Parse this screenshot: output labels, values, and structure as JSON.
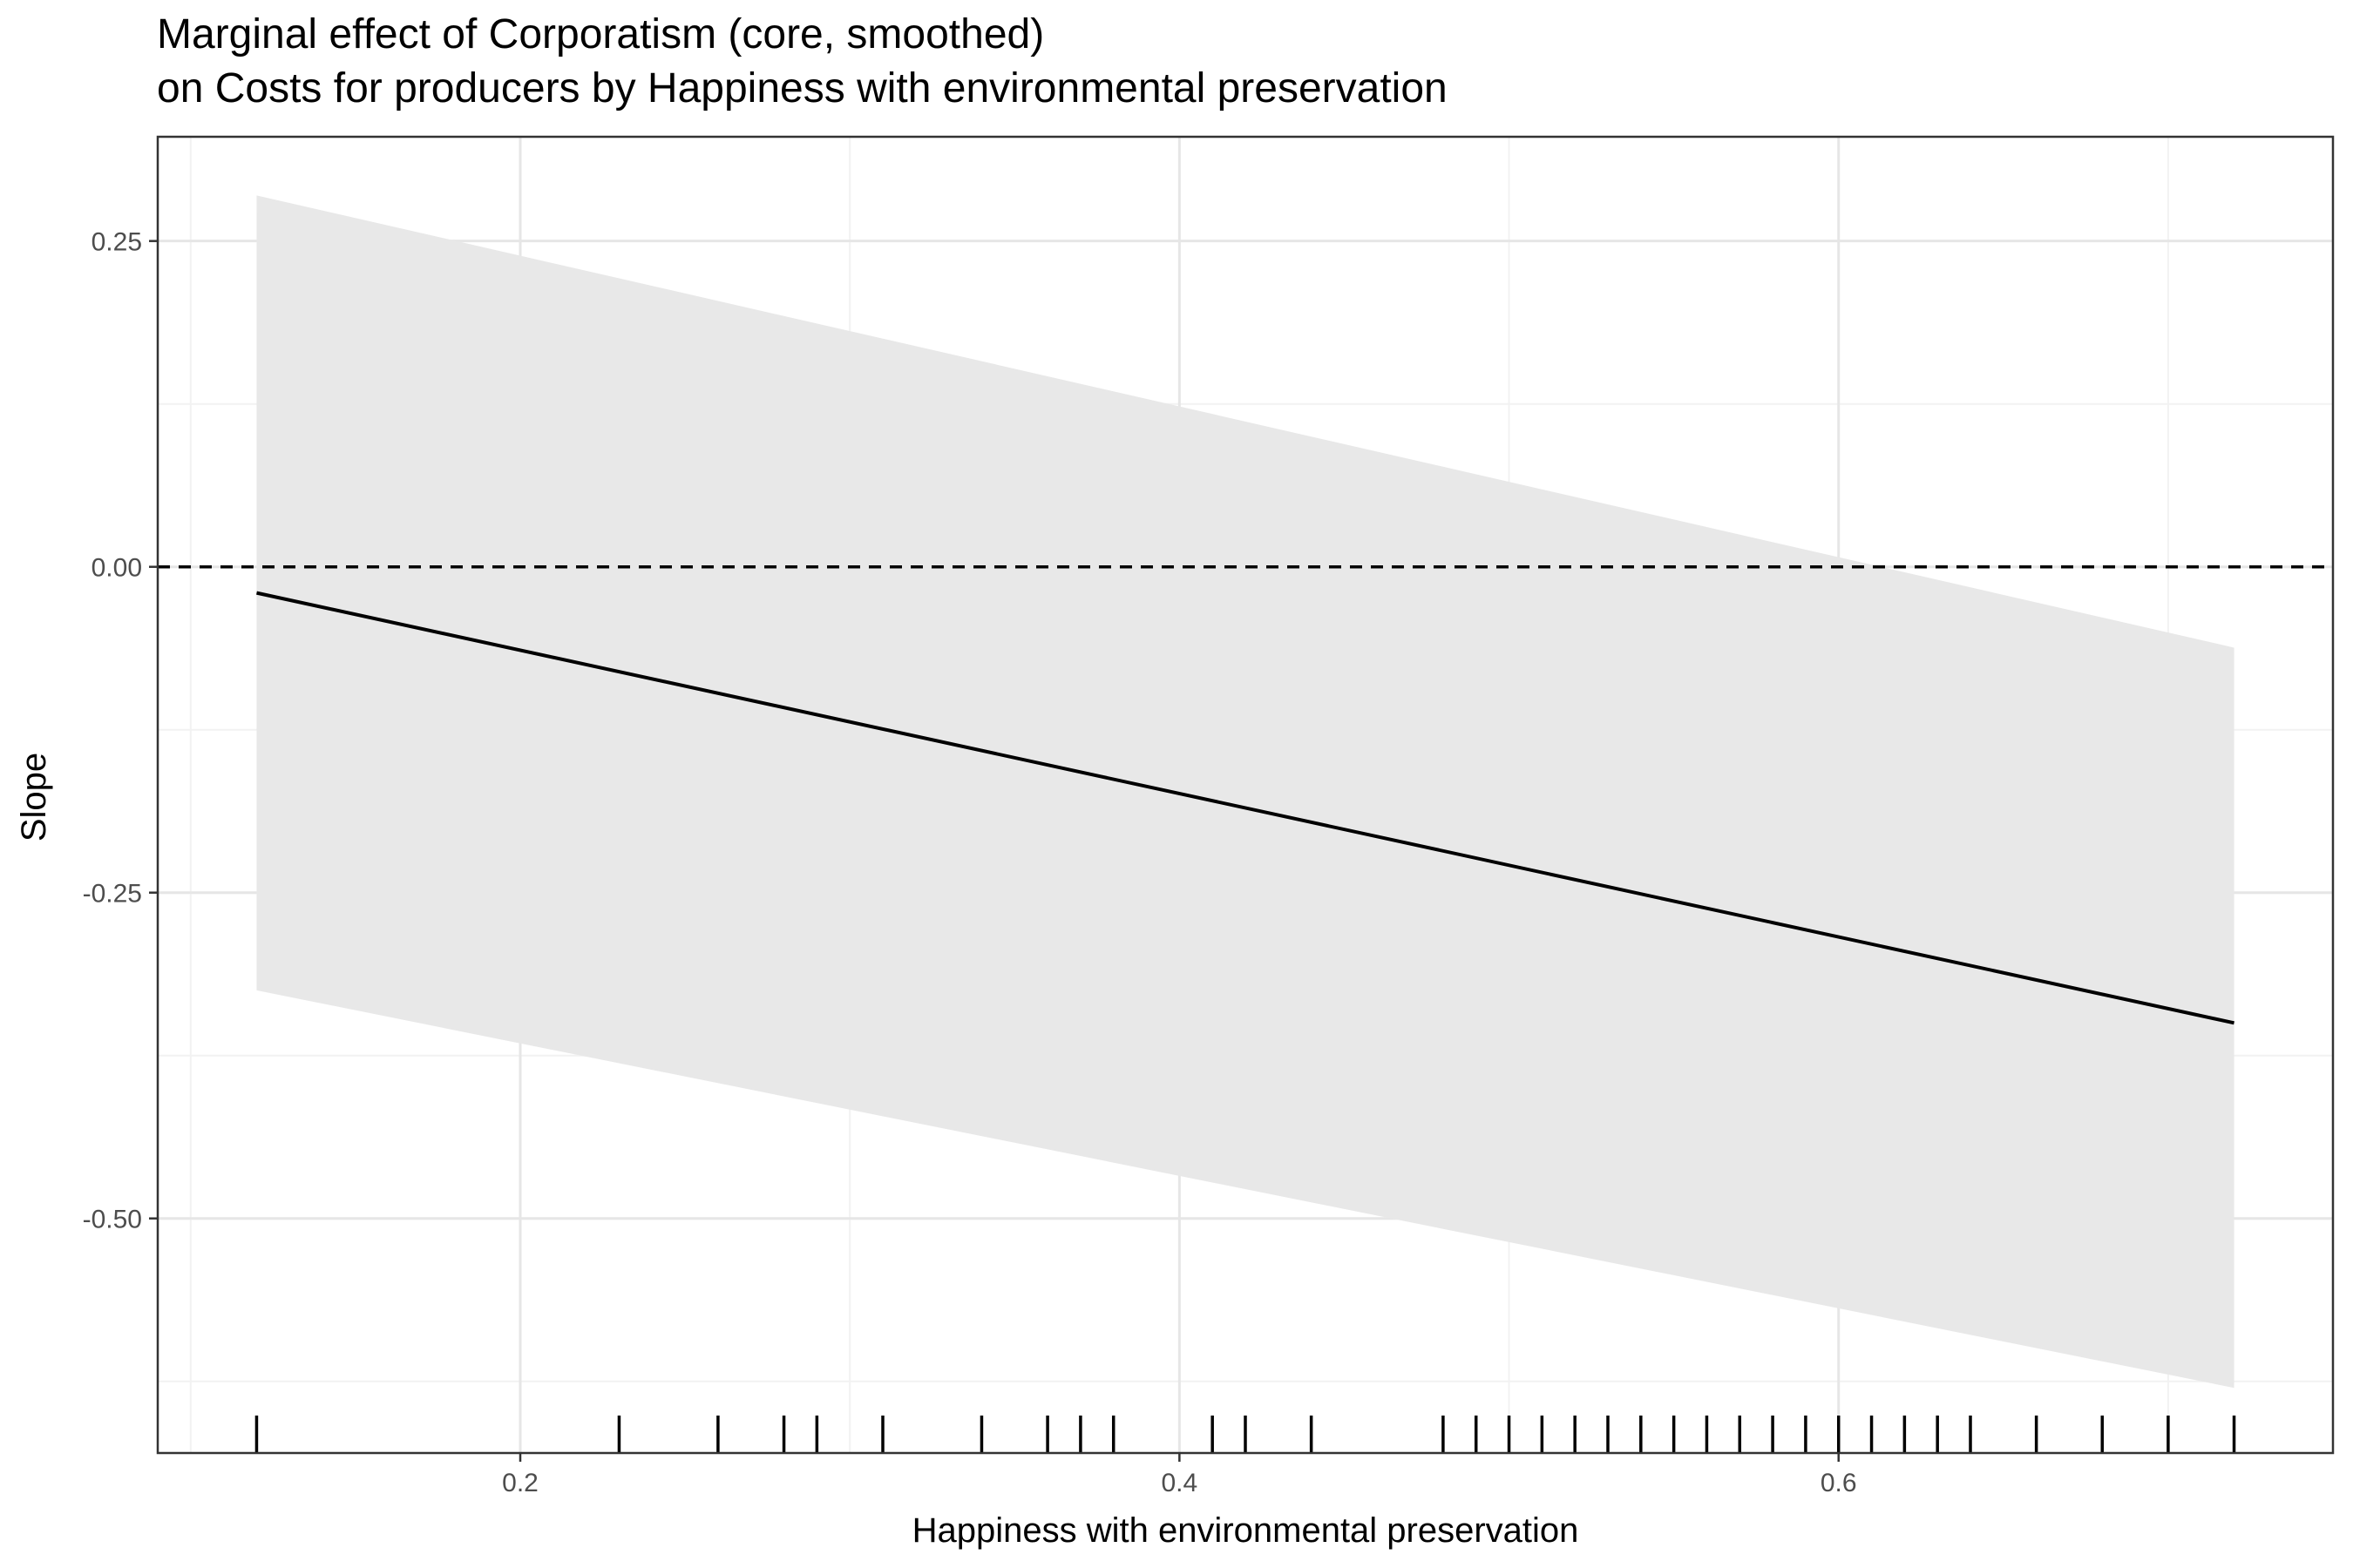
{
  "chart_data": {
    "type": "line",
    "title_lines": [
      "Marginal effect of Corporatism (core, smoothed)",
      "on Costs for producers by Happiness with environmental preservation"
    ],
    "xlabel": "Happiness with environmental preservation",
    "ylabel": "Slope",
    "xlim": [
      0.09,
      0.75
    ],
    "ylim": [
      -0.68,
      0.33
    ],
    "x_ticks": [
      0.2,
      0.4,
      0.6
    ],
    "x_tick_labels": [
      "0.2",
      "0.4",
      "0.6"
    ],
    "y_ticks": [
      0.25,
      0.0,
      -0.25,
      -0.5
    ],
    "y_tick_labels": [
      "0.25",
      "0.00",
      "-0.25",
      "-0.50"
    ],
    "x_minor_grid": [
      0.1,
      0.3,
      0.5,
      0.7
    ],
    "y_minor_grid": [
      0.125,
      -0.125,
      -0.375,
      -0.625
    ],
    "series": [
      {
        "role": "estimate",
        "x": [
          0.12,
          0.72
        ],
        "y": [
          -0.02,
          -0.35
        ]
      },
      {
        "role": "confidence-band",
        "x": [
          0.12,
          0.72
        ],
        "lower": [
          -0.325,
          -0.63
        ],
        "upper": [
          0.285,
          -0.062
        ]
      }
    ],
    "reference_line": {
      "y": 0.0,
      "style": "dashed"
    },
    "rug_x": [
      0.12,
      0.23,
      0.26,
      0.28,
      0.29,
      0.31,
      0.34,
      0.36,
      0.37,
      0.38,
      0.41,
      0.42,
      0.44,
      0.48,
      0.49,
      0.5,
      0.51,
      0.52,
      0.53,
      0.54,
      0.55,
      0.56,
      0.57,
      0.58,
      0.59,
      0.6,
      0.61,
      0.62,
      0.63,
      0.64,
      0.66,
      0.68,
      0.7,
      0.72
    ],
    "grid": true,
    "legend": "none",
    "colors": {
      "line": "#000000",
      "band": "#e8e8e8",
      "grid_major": "#e6e6e6",
      "grid_minor": "#f2f2f2",
      "panel_border": "#333333",
      "tick_label": "#4d4d4d"
    }
  }
}
